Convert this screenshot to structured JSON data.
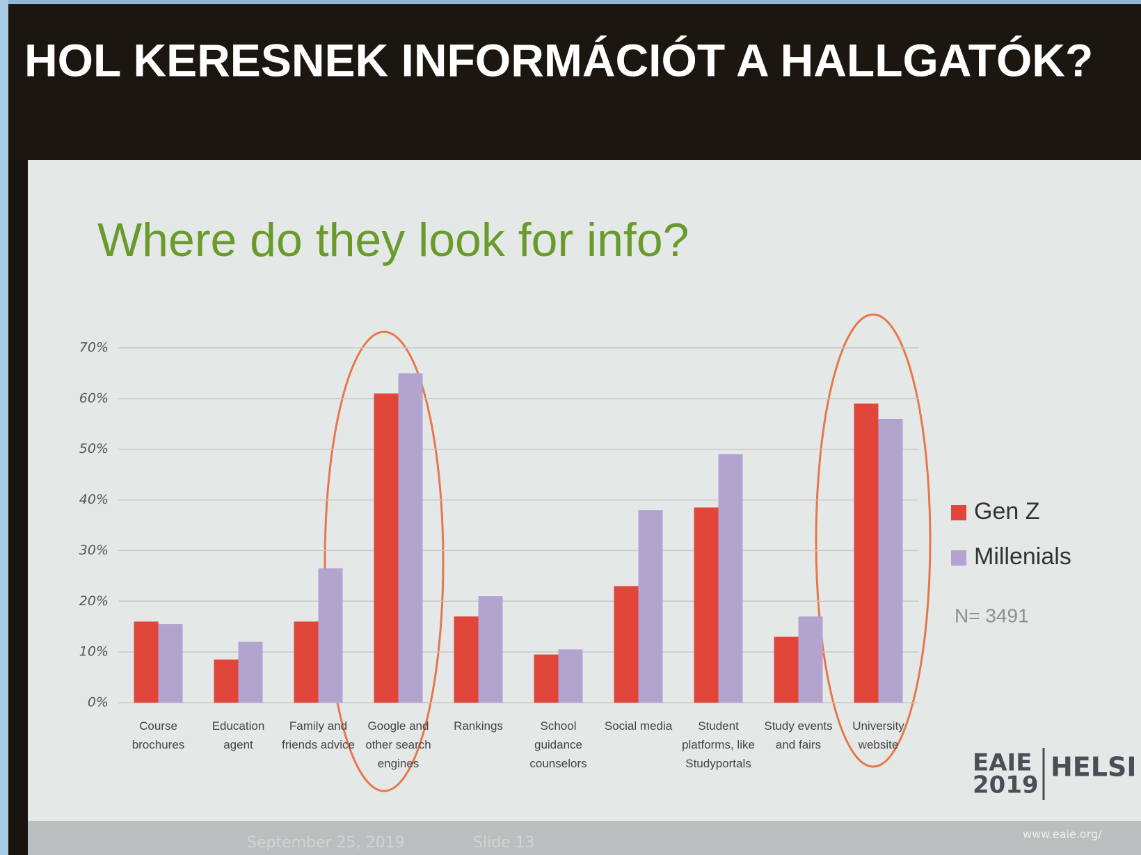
{
  "header": {
    "title": "HOL KERESNEK INFORMÁCIÓT A HALLGATÓK?"
  },
  "chart_data": {
    "type": "bar",
    "title": "Where do they look for info?",
    "categories": [
      "Course brochures",
      "Education agent",
      "Family and friends advice",
      "Google and other search engines",
      "Rankings",
      "School guidance counselors",
      "Social media",
      "Student platforms, like Studyportals",
      "Study events and fairs",
      "University website"
    ],
    "series": [
      {
        "name": "Gen Z",
        "color": "#e0463a",
        "values": [
          16,
          8.5,
          16,
          61,
          17,
          9.5,
          23,
          38.5,
          13,
          59
        ]
      },
      {
        "name": "Millenials",
        "color": "#b3a3cf",
        "values": [
          15.5,
          12,
          26.5,
          65,
          21,
          10.5,
          38,
          49,
          17,
          56
        ]
      }
    ],
    "ylim": [
      0,
      70
    ],
    "yticks": [
      {
        "value": 0,
        "label": "0%"
      },
      {
        "value": 10,
        "label": "10%"
      },
      {
        "value": 20,
        "label": "20%"
      },
      {
        "value": 30,
        "label": "30%"
      },
      {
        "value": 40,
        "label": "40%"
      },
      {
        "value": 50,
        "label": "50%"
      },
      {
        "value": 60,
        "label": "60%"
      },
      {
        "value": 70,
        "label": "70%"
      }
    ],
    "grid": true,
    "legend": "right",
    "note": "N= 3491"
  },
  "footer": {
    "date": "September 25, 2019",
    "slide": "Slide 13",
    "logo_name": "EAIE",
    "logo_year": "2019",
    "logo_city": "HELSI",
    "url": "www.eaie.org/"
  }
}
